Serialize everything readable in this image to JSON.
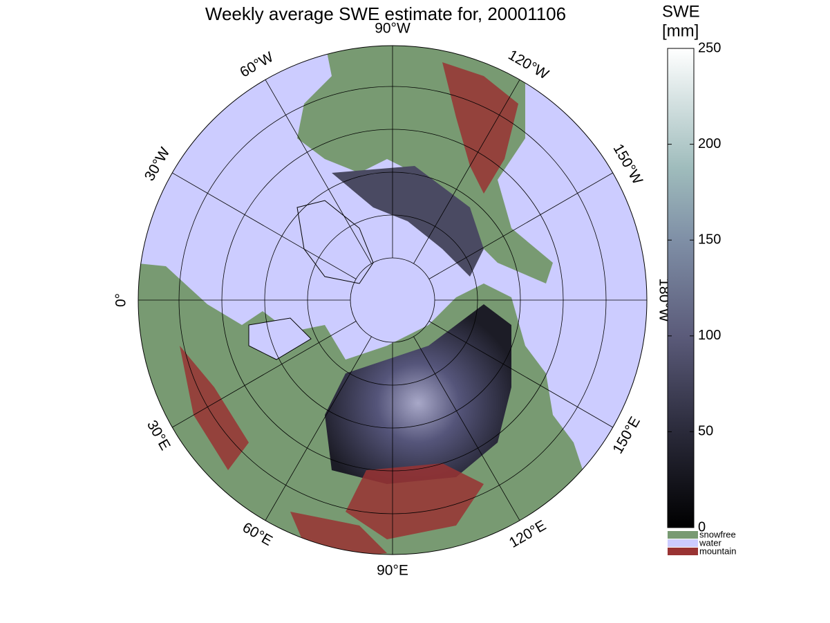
{
  "title": "Weekly average SWE estimate for, 20001106",
  "longitude_labels": [
    "0°",
    "30°E",
    "60°E",
    "90°E",
    "120°E",
    "150°E",
    "180°W",
    "150°W",
    "120°W",
    "90°W",
    "60°W",
    "30°W"
  ],
  "colorbar": {
    "label": [
      "SWE",
      "[mm]"
    ],
    "lim": [
      0,
      250
    ],
    "ticks": [
      0,
      50,
      100,
      150,
      200,
      250
    ]
  },
  "legend": [
    {
      "name": "snowfree",
      "color": "#789a72"
    },
    {
      "name": "water",
      "color": "#ccccff"
    },
    {
      "name": "mountain",
      "color": "#993333"
    }
  ]
}
